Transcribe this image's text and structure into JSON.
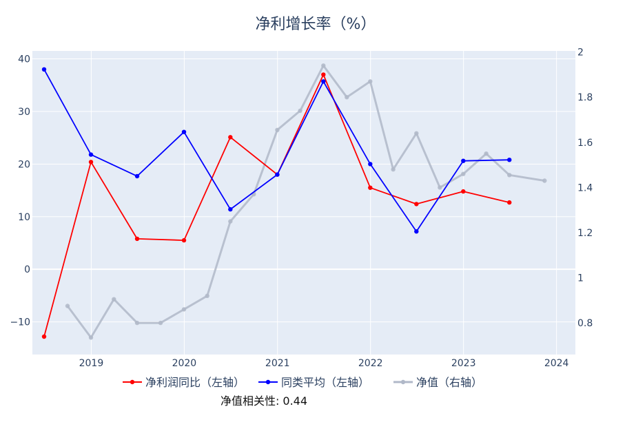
{
  "chart_data": {
    "type": "line",
    "title": "净利增长率（%）",
    "xlabel": "",
    "ylabel": "",
    "x_ticks": [
      "2019",
      "2020",
      "2021",
      "2022",
      "2023",
      "2024"
    ],
    "x_range": [
      "2018-05-15",
      "2024-03-15"
    ],
    "y_left": {
      "ticks": [
        "−10",
        "0",
        "10",
        "20",
        "30",
        "40"
      ],
      "tick_values": [
        -10,
        0,
        10,
        20,
        30,
        40
      ],
      "range": [
        -16.2,
        41.5
      ]
    },
    "y_right": {
      "ticks": [
        "0.8",
        "1",
        "1.2",
        "1.4",
        "1.6",
        "1.8",
        "2"
      ],
      "tick_values": [
        0.8,
        1.0,
        1.2,
        1.4,
        1.6,
        1.8,
        2.0
      ],
      "range": [
        0.66,
        2.005
      ]
    },
    "grid": true,
    "legend_position": "bottom",
    "series": [
      {
        "name": "净利润同比（左轴）",
        "axis": "left",
        "color": "#ff0000",
        "points": [
          [
            "2018-06-30",
            -12.8
          ],
          [
            "2018-12-31",
            20.4
          ],
          [
            "2019-06-30",
            5.8
          ],
          [
            "2019-12-31",
            5.5
          ],
          [
            "2020-06-30",
            25.1
          ],
          [
            "2020-12-31",
            18.0
          ],
          [
            "2021-06-30",
            37.0
          ],
          [
            "2021-12-31",
            15.5
          ],
          [
            "2022-06-30",
            12.4
          ],
          [
            "2022-12-31",
            14.8
          ],
          [
            "2023-06-30",
            12.7
          ]
        ]
      },
      {
        "name": "同类平均（左轴）",
        "axis": "left",
        "color": "#0000ff",
        "points": [
          [
            "2018-06-30",
            38.0
          ],
          [
            "2018-12-31",
            21.8
          ],
          [
            "2019-06-30",
            17.7
          ],
          [
            "2019-12-31",
            26.1
          ],
          [
            "2020-06-30",
            11.4
          ],
          [
            "2020-12-31",
            18.0
          ],
          [
            "2021-06-30",
            35.7
          ],
          [
            "2021-12-31",
            20.0
          ],
          [
            "2022-06-30",
            7.2
          ],
          [
            "2022-12-31",
            20.6
          ],
          [
            "2023-06-30",
            20.8
          ]
        ]
      },
      {
        "name": "净值（右轴）",
        "axis": "right",
        "color": "#b0b8c8",
        "points": [
          [
            "2018-09-30",
            0.875
          ],
          [
            "2018-12-31",
            0.735
          ],
          [
            "2019-03-31",
            0.905
          ],
          [
            "2019-06-30",
            0.8
          ],
          [
            "2019-09-30",
            0.8
          ],
          [
            "2019-12-31",
            0.86
          ],
          [
            "2020-03-31",
            0.92
          ],
          [
            "2020-06-30",
            1.25
          ],
          [
            "2020-09-30",
            1.37
          ],
          [
            "2020-12-31",
            1.655
          ],
          [
            "2021-03-31",
            1.74
          ],
          [
            "2021-06-30",
            1.94
          ],
          [
            "2021-09-30",
            1.8
          ],
          [
            "2021-12-31",
            1.87
          ],
          [
            "2022-03-31",
            1.48
          ],
          [
            "2022-06-30",
            1.64
          ],
          [
            "2022-09-30",
            1.4
          ],
          [
            "2022-12-31",
            1.46
          ],
          [
            "2023-03-31",
            1.55
          ],
          [
            "2023-06-30",
            1.455
          ],
          [
            "2023-11-15",
            1.43
          ]
        ]
      }
    ],
    "annotation": "净值相关性: 0.44"
  }
}
